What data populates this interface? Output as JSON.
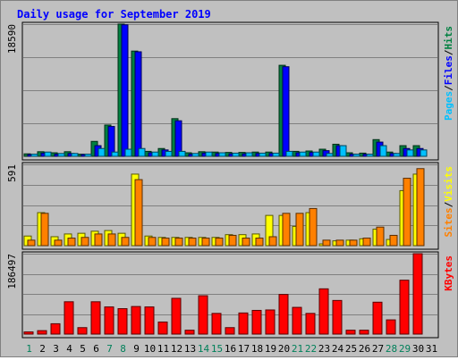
{
  "chart_data": {
    "type": "bar",
    "title": "Daily usage for September 2019",
    "categories": [
      "1",
      "2",
      "3",
      "4",
      "5",
      "6",
      "7",
      "8",
      "9",
      "10",
      "11",
      "12",
      "13",
      "14",
      "15",
      "16",
      "17",
      "18",
      "19",
      "20",
      "21",
      "22",
      "23",
      "24",
      "25",
      "26",
      "27",
      "28",
      "29",
      "30",
      "31"
    ],
    "weekend_days": [
      "1",
      "7",
      "8",
      "14",
      "15",
      "21",
      "22",
      "28",
      "29"
    ],
    "panels": [
      {
        "id": "hits",
        "ymax_label": "18590",
        "ymax": 18590,
        "series": [
          {
            "name": "Hits",
            "color": "#008040",
            "values": [
              350,
              650,
              500,
              650,
              300,
              2100,
              4400,
              18590,
              14800,
              700,
              1100,
              5300,
              500,
              650,
              600,
              550,
              550,
              600,
              600,
              12800,
              700,
              750,
              1000,
              1700,
              500,
              450,
              2350,
              600,
              1500,
              1500,
              0
            ]
          },
          {
            "name": "Files",
            "color": "#0000ff",
            "values": [
              200,
              450,
              300,
              400,
              200,
              1500,
              4200,
              18500,
              14700,
              500,
              900,
              5000,
              300,
              450,
              400,
              350,
              350,
              400,
              400,
              12600,
              500,
              550,
              800,
              1500,
              300,
              300,
              2000,
              400,
              1100,
              1100,
              0
            ]
          },
          {
            "name": "Pages",
            "color": "#00c0ff",
            "values": [
              300,
              600,
              400,
              400,
              300,
              1100,
              600,
              1000,
              1100,
              600,
              700,
              700,
              400,
              600,
              500,
              450,
              500,
              450,
              450,
              700,
              600,
              600,
              400,
              1500,
              300,
              300,
              1500,
              400,
              900,
              900,
              0
            ]
          }
        ],
        "legend": [
          "Pages",
          "Files",
          "Hits"
        ]
      },
      {
        "id": "visits",
        "ymax_label": "591",
        "ymax": 591,
        "series": [
          {
            "name": "Visits",
            "color": "#ffff00",
            "values": [
              70,
              240,
              65,
              85,
              90,
              105,
              110,
              90,
              520,
              70,
              60,
              60,
              60,
              60,
              60,
              80,
              80,
              85,
              220,
              220,
              140,
              240,
              8,
              35,
              40,
              50,
              120,
              45,
              400,
              520,
              0
            ]
          },
          {
            "name": "Sites",
            "color": "#ff8000",
            "values": [
              40,
              235,
              40,
              55,
              60,
              85,
              85,
              60,
              480,
              60,
              55,
              55,
              55,
              55,
              55,
              75,
              55,
              55,
              65,
              235,
              235,
              270,
              40,
              40,
              40,
              55,
              135,
              75,
              490,
              560,
              0
            ]
          }
        ],
        "legend": [
          "Sites",
          "Visits"
        ]
      },
      {
        "id": "kbytes",
        "ymax_label": "186497",
        "ymax": 186497,
        "series": [
          {
            "name": "KBytes",
            "color": "#ff0000",
            "values": [
              5000,
              8000,
              24000,
              75000,
              15000,
              75000,
              63000,
              59000,
              64000,
              63000,
              28000,
              83000,
              9000,
              89000,
              48000,
              15000,
              49000,
              55000,
              56000,
              92000,
              62000,
              48000,
              105000,
              78000,
              9000,
              9000,
              74000,
              33000,
              125000,
              186497,
              0
            ]
          }
        ],
        "legend": [
          "KBytes"
        ]
      }
    ]
  }
}
